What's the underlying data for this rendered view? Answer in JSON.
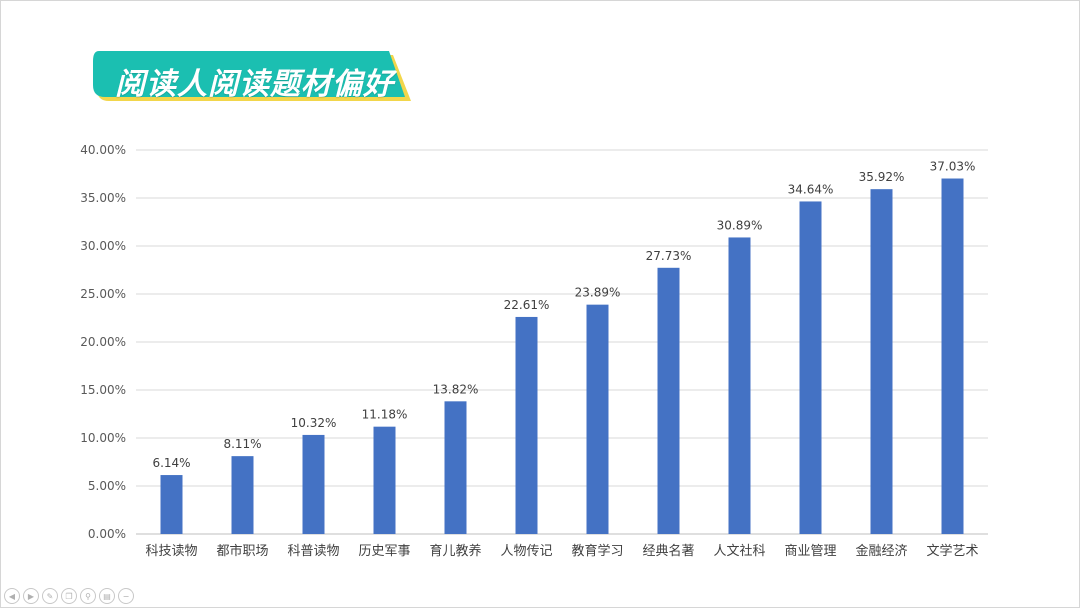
{
  "title": "阅读人阅读题材偏好",
  "colors": {
    "bar": "#4472C4",
    "title_bg": "#1BBFB1",
    "title_accent": "#F2D64B",
    "grid": "#d9d9d9"
  },
  "toolbar": {
    "icons": [
      "prev-icon",
      "next-icon",
      "pen-icon",
      "copy-icon",
      "zoom-icon",
      "menu-icon",
      "minus-icon"
    ]
  },
  "chart_data": {
    "type": "bar",
    "categories": [
      "科技读物",
      "都市职场",
      "科普读物",
      "历史军事",
      "育儿教养",
      "人物传记",
      "教育学习",
      "经典名著",
      "人文社科",
      "商业管理",
      "金融经济",
      "文学艺术"
    ],
    "values": [
      6.14,
      8.11,
      10.32,
      11.18,
      13.82,
      22.61,
      23.89,
      27.73,
      30.89,
      34.64,
      35.92,
      37.03
    ],
    "value_labels": [
      "6.14%",
      "8.11%",
      "10.32%",
      "11.18%",
      "13.82%",
      "22.61%",
      "23.89%",
      "27.73%",
      "30.89%",
      "34.64%",
      "35.92%",
      "37.03%"
    ],
    "y_ticks": [
      "0.00%",
      "5.00%",
      "10.00%",
      "15.00%",
      "20.00%",
      "25.00%",
      "30.00%",
      "35.00%",
      "40.00%"
    ],
    "ylim": [
      0,
      40
    ],
    "grid": true,
    "xlabel": "",
    "ylabel": ""
  }
}
